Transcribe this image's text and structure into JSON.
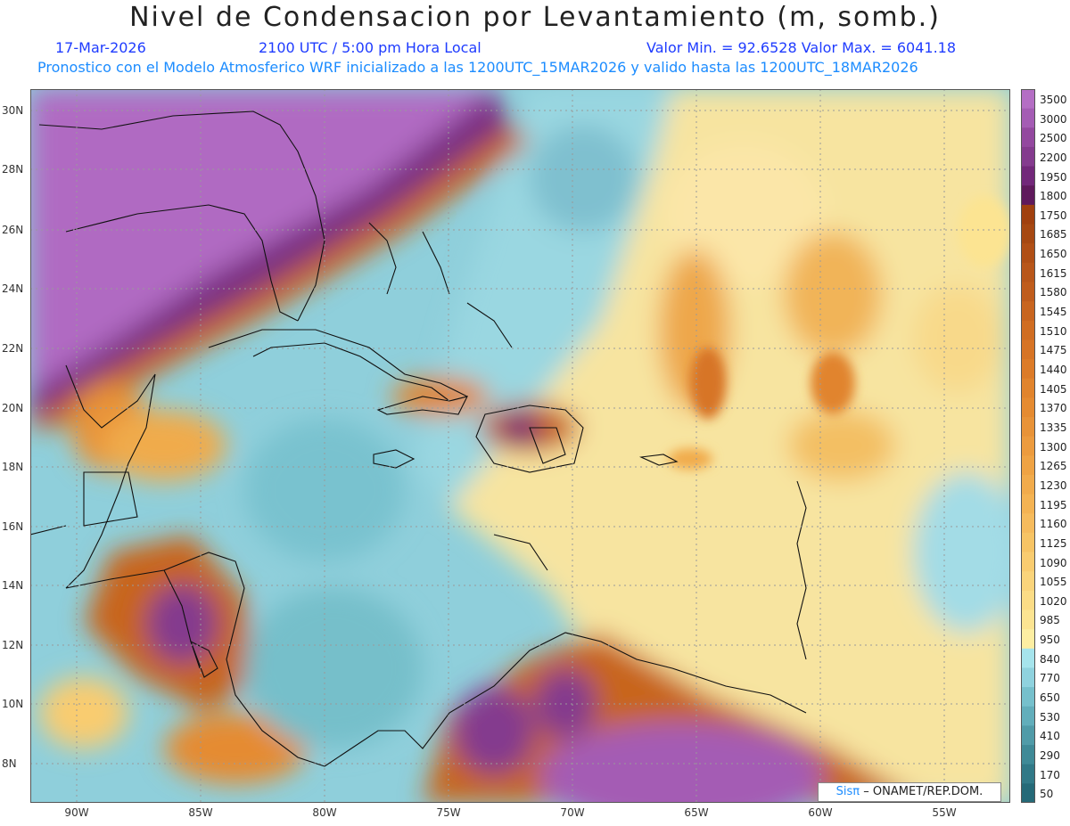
{
  "header": {
    "title": "Nivel de Condensacion por Levantamiento (m, somb.)",
    "date": "17-Mar-2026",
    "time": "2100 UTC / 5:00 pm Hora Local",
    "minmax": "Valor Min. = 92.6528   Valor Max. = 6041.18",
    "model_line": "Pronostico con el Modelo Atmosferico WRF inicializado a las 1200UTC_15MAR2026 y valido hasta las  1200UTC_18MAR2026"
  },
  "axes": {
    "x_ticks": [
      "90W",
      "85W",
      "80W",
      "75W",
      "70W",
      "65W",
      "60W",
      "55W"
    ],
    "y_ticks": [
      "30N",
      "28N",
      "26N",
      "24N",
      "22N",
      "20N",
      "18N",
      "16N",
      "14N",
      "12N",
      "10N",
      "8N"
    ]
  },
  "colorbar": {
    "levels": [
      "3500",
      "3000",
      "2500",
      "2200",
      "1950",
      "1800",
      "1750",
      "1685",
      "1650",
      "1615",
      "1580",
      "1545",
      "1510",
      "1475",
      "1440",
      "1405",
      "1370",
      "1335",
      "1300",
      "1265",
      "1230",
      "1195",
      "1160",
      "1125",
      "1090",
      "1055",
      "1020",
      "985",
      "950",
      "840",
      "770",
      "650",
      "530",
      "410",
      "290",
      "170",
      "50"
    ],
    "colors": [
      "#b46ec4",
      "#a45cb4",
      "#93489f",
      "#843b8e",
      "#72287a",
      "#5f1a5c",
      "#a0400f",
      "#a64812",
      "#b04f16",
      "#b8561a",
      "#bf5c1c",
      "#c8651f",
      "#d06d22",
      "#d77425",
      "#dc7b28",
      "#e1842d",
      "#e58b31",
      "#e89338",
      "#ec9b3e",
      "#efa344",
      "#f1ab4c",
      "#f4b353",
      "#f6bb5d",
      "#f7c465",
      "#f9cc70",
      "#fad47b",
      "#fbdc86",
      "#fce492",
      "#fdeea2",
      "#a6e4ec",
      "#8fd2de",
      "#76c0cc",
      "#62aebb",
      "#509ba8",
      "#3f8a97",
      "#317987",
      "#256a78"
    ]
  },
  "credit": {
    "sis": "Sisπ",
    "text": "– ONAMET/REP.DOM."
  }
}
